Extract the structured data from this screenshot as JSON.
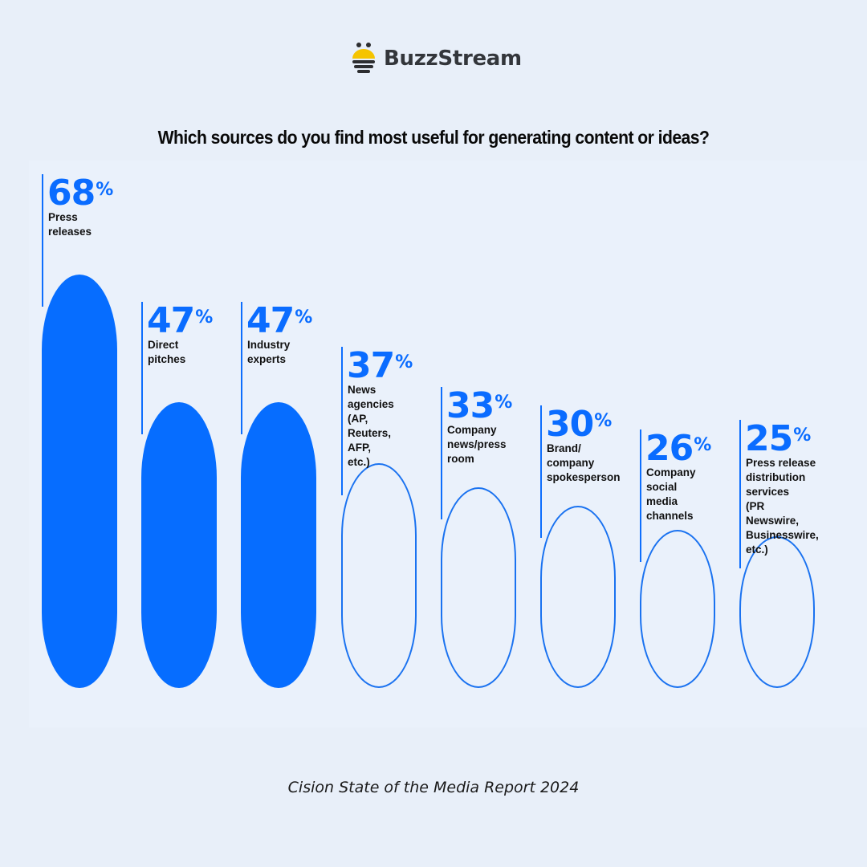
{
  "brand": {
    "name": "BuzzStream",
    "logo_icon": "bee-icon",
    "colors": {
      "bee_yellow": "#f5c400",
      "bee_dark": "#2c2d30",
      "text": "#33363b"
    }
  },
  "title": "Which sources do you find most useful for generating content or ideas?",
  "footer": "Cision State of the Media Report 2024",
  "colors": {
    "background": "#e8eff9",
    "accent_blue": "#0a6cff",
    "filled_bar": "#066dff",
    "outline_bar": "#1a72f0"
  },
  "items": [
    {
      "value": "68",
      "pct_sign": "%",
      "label": "Press\nreleases",
      "style": "filled"
    },
    {
      "value": "47",
      "pct_sign": "%",
      "label": "Direct\npitches",
      "style": "filled"
    },
    {
      "value": "47",
      "pct_sign": "%",
      "label": "Industry\nexperts",
      "style": "filled"
    },
    {
      "value": "37",
      "pct_sign": "%",
      "label": "News\nagencies\n(AP, Reuters,\nAFP, etc.)",
      "style": "outline"
    },
    {
      "value": "33",
      "pct_sign": "%",
      "label": "Company\nnews/press\nroom",
      "style": "outline"
    },
    {
      "value": "30",
      "pct_sign": "%",
      "label": "Brand/\ncompany\nspokesperson",
      "style": "outline"
    },
    {
      "value": "26",
      "pct_sign": "%",
      "label": "Company\nsocial media\nchannels",
      "style": "outline"
    },
    {
      "value": "25",
      "pct_sign": "%",
      "label": "Press release\ndistribution\nservices\n(PR Newswire,\nBusinesswire, etc.)",
      "style": "outline"
    }
  ],
  "chart_data": {
    "type": "bar",
    "title": "Which sources do you find most useful for generating content or ideas?",
    "categories": [
      "Press releases",
      "Direct pitches",
      "Industry experts",
      "News agencies (AP, Reuters, AFP, etc.)",
      "Company news/press room",
      "Brand/company spokesperson",
      "Company social media channels",
      "Press release distribution services (PR Newswire, Businesswire, etc.)"
    ],
    "values": [
      68,
      47,
      47,
      37,
      33,
      30,
      26,
      25
    ],
    "unit": "%",
    "xlabel": "",
    "ylabel": "",
    "ylim": [
      0,
      100
    ],
    "grid": false,
    "legend": null,
    "highlight": "Top 3 bars filled; remaining bars outlined",
    "source": "Cision State of the Media Report 2024"
  }
}
